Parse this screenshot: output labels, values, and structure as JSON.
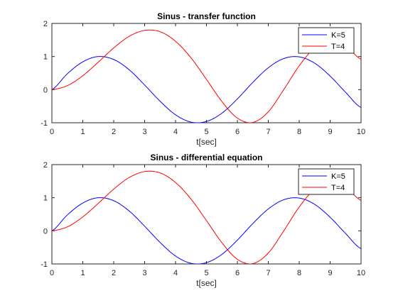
{
  "chart_data": [
    {
      "type": "line",
      "title": "Sinus - transfer function",
      "xlabel": "t[sec]",
      "ylabel": "",
      "xlim": [
        0,
        10
      ],
      "ylim": [
        -1,
        2
      ],
      "xticks": [
        0,
        1,
        2,
        3,
        4,
        5,
        6,
        7,
        8,
        9,
        10
      ],
      "yticks": [
        -1,
        0,
        1,
        2
      ],
      "grid": false,
      "legend_position": "top-right",
      "series": [
        {
          "name": "K=5",
          "color": "#0000ff",
          "x": [
            0,
            0.5,
            1,
            1.5,
            2,
            2.5,
            3,
            3.5,
            4,
            4.5,
            5,
            5.5,
            6,
            6.5,
            7,
            7.5,
            8,
            8.5,
            9,
            9.5,
            10
          ],
          "y": [
            0,
            0.48,
            0.84,
            1.0,
            0.91,
            0.6,
            0.14,
            -0.35,
            -0.76,
            -0.98,
            -0.96,
            -0.71,
            -0.28,
            0.22,
            0.66,
            0.94,
            0.99,
            0.8,
            0.41,
            -0.08,
            -0.54
          ]
        },
        {
          "name": "T=4",
          "color": "#ff0000",
          "x": [
            0,
            0.5,
            1,
            1.5,
            2,
            2.5,
            3,
            3.5,
            4,
            4.5,
            5,
            5.5,
            6,
            6.5,
            7,
            7.5,
            8,
            8.5,
            9,
            9.5,
            10
          ],
          "y": [
            0,
            0.12,
            0.42,
            0.83,
            1.26,
            1.61,
            1.79,
            1.75,
            1.46,
            0.96,
            0.31,
            -0.36,
            -0.86,
            -0.99,
            -0.67,
            0.0,
            0.72,
            1.26,
            1.47,
            1.32,
            0.92
          ]
        }
      ]
    },
    {
      "type": "line",
      "title": "Sinus - differential equation",
      "xlabel": "t[sec]",
      "ylabel": "",
      "xlim": [
        0,
        10
      ],
      "ylim": [
        -1,
        2
      ],
      "xticks": [
        0,
        1,
        2,
        3,
        4,
        5,
        6,
        7,
        8,
        9,
        10
      ],
      "yticks": [
        -1,
        0,
        1,
        2
      ],
      "grid": false,
      "legend_position": "top-right",
      "series": [
        {
          "name": "K=5",
          "color": "#0000ff",
          "x": [
            0,
            0.5,
            1,
            1.5,
            2,
            2.5,
            3,
            3.5,
            4,
            4.5,
            5,
            5.5,
            6,
            6.5,
            7,
            7.5,
            8,
            8.5,
            9,
            9.5,
            10
          ],
          "y": [
            0,
            0.48,
            0.84,
            1.0,
            0.91,
            0.6,
            0.14,
            -0.35,
            -0.76,
            -0.98,
            -0.96,
            -0.71,
            -0.28,
            0.22,
            0.66,
            0.94,
            0.99,
            0.8,
            0.41,
            -0.08,
            -0.54
          ]
        },
        {
          "name": "T=4",
          "color": "#ff0000",
          "x": [
            0,
            0.5,
            1,
            1.5,
            2,
            2.5,
            3,
            3.5,
            4,
            4.5,
            5,
            5.5,
            6,
            6.5,
            7,
            7.5,
            8,
            8.5,
            9,
            9.5,
            10
          ],
          "y": [
            0,
            0.12,
            0.42,
            0.83,
            1.26,
            1.61,
            1.79,
            1.75,
            1.46,
            0.96,
            0.31,
            -0.36,
            -0.86,
            -0.99,
            -0.67,
            0.0,
            0.72,
            1.26,
            1.47,
            1.32,
            0.92
          ]
        }
      ]
    }
  ]
}
